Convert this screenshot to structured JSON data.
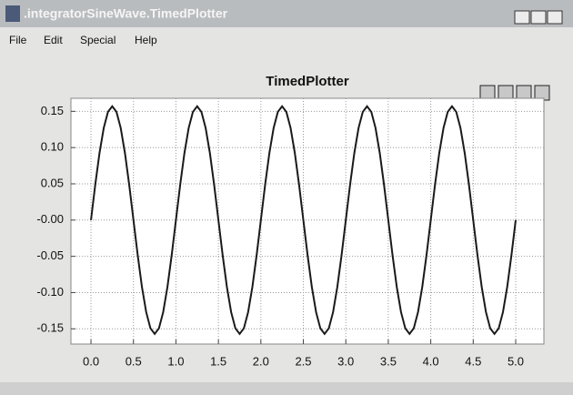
{
  "window": {
    "title": ".integratorSineWave.TimedPlotter",
    "menu": [
      "File",
      "Edit",
      "Special",
      "Help"
    ]
  },
  "chart_data": {
    "type": "line",
    "title": "TimedPlotter",
    "color": "#1a1a1a",
    "grid": true,
    "xlim": [
      -0.236,
      5.332
    ],
    "ylim": [
      -0.171,
      0.168
    ],
    "xticks": [
      {
        "value": 0,
        "label": "0.0"
      },
      0.5,
      {
        "value": 1,
        "label": "1.0"
      },
      1.5,
      {
        "value": 2,
        "label": "2.0"
      },
      2.5,
      {
        "value": 3,
        "label": "3.0"
      },
      3.5,
      {
        "value": 4,
        "label": "4.0"
      },
      4.5,
      {
        "value": 5,
        "label": "5.0"
      }
    ],
    "yticks": [
      {
        "value": 0.15,
        "label": "0.15"
      },
      {
        "value": 0.1,
        "label": "0.10"
      },
      {
        "value": 0.05,
        "label": "0.05"
      },
      {
        "value": 0,
        "label": "-0.00"
      },
      {
        "value": -0.05,
        "label": "-0.05"
      },
      {
        "value": -0.1,
        "label": "-0.10"
      },
      {
        "value": -0.15,
        "label": "-0.15"
      }
    ],
    "x": [
      0,
      0.05,
      0.1,
      0.15,
      0.2,
      0.25,
      0.3,
      0.35,
      0.4,
      0.45,
      0.5,
      0.55,
      0.6,
      0.65,
      0.7,
      0.75,
      0.8,
      0.85,
      0.9,
      0.95,
      1,
      1.05,
      1.1,
      1.15,
      1.2,
      1.25,
      1.3,
      1.35,
      1.4,
      1.45,
      1.5,
      1.55,
      1.6,
      1.65,
      1.7,
      1.75,
      1.8,
      1.85,
      1.9,
      1.95,
      2,
      2.05,
      2.1,
      2.15,
      2.2,
      2.25,
      2.3,
      2.35,
      2.4,
      2.45,
      2.5,
      2.55,
      2.6,
      2.65,
      2.7,
      2.75,
      2.8,
      2.85,
      2.9,
      2.95,
      3,
      3.05,
      3.1,
      3.15,
      3.2,
      3.25,
      3.3,
      3.35,
      3.4,
      3.45,
      3.5,
      3.55,
      3.6,
      3.65,
      3.7,
      3.75,
      3.8,
      3.85,
      3.9,
      3.95,
      4,
      4.05,
      4.1,
      4.15,
      4.2,
      4.25,
      4.3,
      4.35,
      4.4,
      4.45,
      4.5,
      4.55,
      4.6,
      4.65,
      4.7,
      4.75,
      4.8,
      4.85,
      4.9,
      4.95,
      5
    ],
    "values": [
      0,
      0.0485,
      0.0923,
      0.127,
      0.1493,
      0.157,
      0.1493,
      0.127,
      0.0923,
      0.0485,
      0,
      -0.0485,
      -0.0923,
      -0.127,
      -0.1493,
      -0.157,
      -0.1493,
      -0.127,
      -0.0923,
      -0.0485,
      0,
      0.0485,
      0.0923,
      0.127,
      0.1493,
      0.157,
      0.1493,
      0.127,
      0.0923,
      0.0485,
      0,
      -0.0485,
      -0.0923,
      -0.127,
      -0.1493,
      -0.157,
      -0.1493,
      -0.127,
      -0.0923,
      -0.0485,
      0,
      0.0485,
      0.0923,
      0.127,
      0.1493,
      0.157,
      0.1493,
      0.127,
      0.0923,
      0.0485,
      0,
      -0.0485,
      -0.0923,
      -0.127,
      -0.1493,
      -0.157,
      -0.1493,
      -0.127,
      -0.0923,
      -0.0485,
      0,
      0.0485,
      0.0923,
      0.127,
      0.1493,
      0.157,
      0.1493,
      0.127,
      0.0923,
      0.0485,
      0,
      -0.0485,
      -0.0923,
      -0.127,
      -0.1493,
      -0.157,
      -0.1493,
      -0.127,
      -0.0923,
      -0.0485,
      0,
      0.0485,
      0.0923,
      0.127,
      0.1493,
      0.157,
      0.1493,
      0.127,
      0.0923,
      0.0485,
      0,
      -0.0485,
      -0.0923,
      -0.127,
      -0.1493,
      -0.157,
      -0.1493,
      -0.127,
      -0.0923,
      -0.0485,
      0
    ]
  }
}
